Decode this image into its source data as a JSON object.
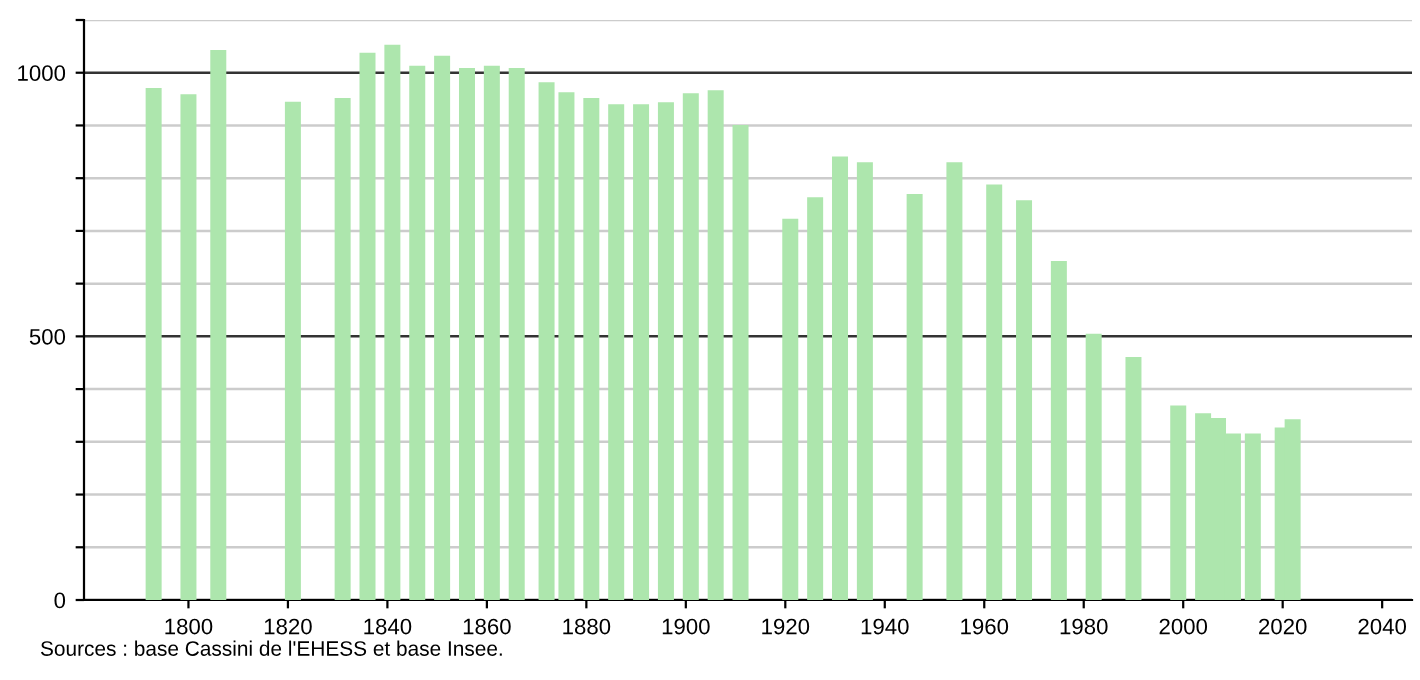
{
  "chart_data": {
    "type": "bar",
    "annotations": [
      "Sources : base Cassini de l'EHESS et base Insee."
    ],
    "x": [
      1793,
      1800,
      1806,
      1821,
      1831,
      1836,
      1841,
      1846,
      1851,
      1856,
      1861,
      1866,
      1872,
      1876,
      1881,
      1886,
      1891,
      1896,
      1901,
      1906,
      1911,
      1921,
      1926,
      1931,
      1936,
      1946,
      1954,
      1962,
      1968,
      1975,
      1982,
      1990,
      1999,
      2004,
      2007,
      2010,
      2014,
      2020,
      2022
    ],
    "values": [
      971,
      959,
      1043,
      945,
      952,
      1038,
      1053,
      1013,
      1032,
      1009,
      1013,
      1009,
      982,
      963,
      952,
      940,
      940,
      944,
      961,
      967,
      901,
      723,
      764,
      841,
      830,
      770,
      830,
      788,
      758,
      643,
      505,
      461,
      369,
      354,
      345,
      316,
      316,
      327,
      343
    ],
    "color": "#ade6ad",
    "xlim": [
      1779,
      2046
    ],
    "xticks": [
      1800,
      1820,
      1840,
      1860,
      1880,
      1900,
      1920,
      1940,
      1960,
      1980,
      2000,
      2020,
      2040
    ],
    "ylim": [
      0,
      1100
    ],
    "yticks": [
      0,
      {
        "value": 100,
        "label": null
      },
      {
        "value": 200,
        "label": null
      },
      {
        "value": 300,
        "label": null
      },
      {
        "value": 400,
        "label": null
      },
      500,
      {
        "value": 600,
        "label": null
      },
      {
        "value": 700,
        "label": null
      },
      {
        "value": 800,
        "label": null
      },
      {
        "value": 900,
        "label": null
      },
      1000,
      {
        "value": 1100,
        "label": null
      }
    ],
    "grid": "y",
    "legend": false
  }
}
